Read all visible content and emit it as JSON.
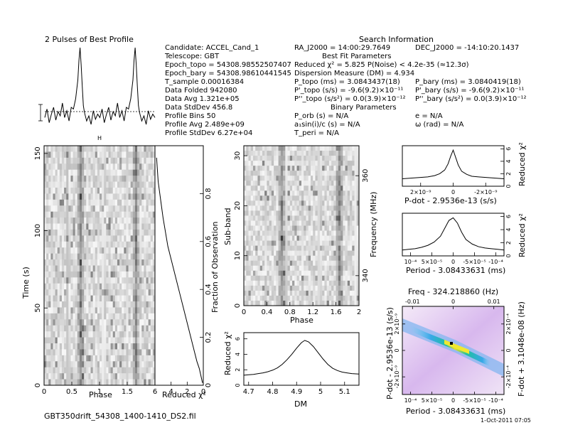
{
  "info": {
    "profile_title": "2 Pulses of Best Profile",
    "candidate": "Candidate:  ACCEL_Cand_1",
    "telescope": "Telescope:  GBT",
    "epoch_topo": "Epoch_topo = 54308.98552507407",
    "epoch_bary": "Epoch_bary = 54308.98610441545",
    "t_sample": "T_sample       0.00016384",
    "data_folded": "Data Folded      942080",
    "data_avg": "Data Avg         1.321e+05",
    "data_stddev": "Data StdDev      456.8",
    "profile_bins": "Profile Bins     50",
    "profile_avg": "Profile Avg      2.489e+09",
    "profile_stddev": "Profile StdDev   6.27e+04",
    "search_title": "Search Information",
    "ra": "RA_J2000 = 14:00:29.7649",
    "dec": "DEC_J2000 = -14:10:20.1437",
    "best_fit_title": "Best Fit Parameters",
    "reduced_chi2": "Reduced χ² = 5.825   P(Noise) < 4.2e-35   (≈12.3σ)",
    "dm": "Dispersion Measure (DM) = 4.934",
    "p_topo": "P_topo (ms) =  3.0843437(18)",
    "pdot_topo": "P'_topo (s/s) = -9.6(9.2)×10⁻¹¹",
    "pddot_topo": "P''_topo (s/s²) = 0.0(3.9)×10⁻¹²",
    "p_bary": "P_bary (ms) =  3.0840419(18)",
    "pdot_bary": "P'_bary (s/s) = -9.6(9.2)×10⁻¹¹",
    "pddot_bary": "P''_bary (s/s²) = 0.0(3.9)×10⁻¹²",
    "binary_title": "Binary Parameters",
    "p_orb": "P_orb (s) = N/A",
    "e": "e = N/A",
    "asini": "a₁sin(i)/c (s) = N/A",
    "omega": "ω (rad) = N/A",
    "t_peri": "T_peri  = N/A",
    "filename": "GBT350drift_54308_1400-1410_DS2.fil",
    "date": "1-Oct-2011 07:05"
  },
  "colors": {
    "axis": "#000000",
    "line": "#000000"
  },
  "chart_data": [
    {
      "id": "profile",
      "type": "line",
      "title": "2 Pulses of Best Profile",
      "xlabel": "",
      "ylabel": "",
      "x": [
        0.0,
        0.04,
        0.08,
        0.12,
        0.16,
        0.2,
        0.24,
        0.28,
        0.32,
        0.36,
        0.4,
        0.44,
        0.48,
        0.52,
        0.56,
        0.6,
        0.62,
        0.64,
        0.66,
        0.68,
        0.7,
        0.72,
        0.76,
        0.8,
        0.84,
        0.88,
        0.92,
        0.96,
        1.0,
        1.04,
        1.08,
        1.12,
        1.16,
        1.2,
        1.24,
        1.28,
        1.32,
        1.36,
        1.4,
        1.44,
        1.48,
        1.52,
        1.56,
        1.6,
        1.62,
        1.64,
        1.66,
        1.68,
        1.7,
        1.72,
        1.76,
        1.8,
        1.84,
        1.88,
        1.92,
        1.96,
        2.0
      ],
      "values": [
        0.18,
        0.28,
        0.12,
        0.22,
        0.3,
        0.15,
        0.25,
        0.2,
        0.35,
        0.18,
        0.26,
        0.14,
        0.3,
        0.28,
        0.4,
        0.62,
        0.85,
        1.0,
        0.8,
        0.55,
        0.32,
        0.24,
        0.14,
        0.2,
        0.1,
        0.26,
        0.16,
        0.22,
        0.18,
        0.28,
        0.12,
        0.22,
        0.3,
        0.15,
        0.25,
        0.2,
        0.35,
        0.18,
        0.26,
        0.14,
        0.3,
        0.28,
        0.4,
        0.62,
        0.85,
        1.0,
        0.8,
        0.55,
        0.32,
        0.24,
        0.14,
        0.2,
        0.1,
        0.26,
        0.16,
        0.22,
        0.18
      ]
    },
    {
      "id": "time_phase",
      "type": "heatmap",
      "xlabel": "Phase",
      "ylabel": "Time (s)",
      "xlim": [
        0,
        2
      ],
      "ylim": [
        0,
        155
      ],
      "xticks": [
        0,
        0.5,
        1,
        1.5,
        2
      ],
      "xtick_labels": [
        "0",
        "0.5",
        "1",
        "1.5",
        ""
      ],
      "yticks": [
        0,
        50,
        100,
        150
      ],
      "pulse_phases": [
        0.66,
        1.66
      ],
      "rows": 40,
      "cols": 50
    },
    {
      "id": "time_chi2",
      "type": "line",
      "xlabel": "Reduced χ²",
      "ylabel": "Fraction of Observation",
      "xlim": [
        6,
        0
      ],
      "ylim": [
        0,
        1
      ],
      "xticks": [
        6,
        4,
        2,
        0
      ],
      "yticks": [
        0,
        0.2,
        0.4,
        0.6,
        0.8
      ],
      "x": [
        5.8,
        5.7,
        5.6,
        5.4,
        5.2,
        5.0,
        4.8,
        4.6,
        4.4,
        4.1,
        3.8,
        3.5,
        3.2,
        2.9,
        2.6,
        2.3,
        2.0,
        1.7,
        1.4,
        1.1,
        0.8,
        0.5,
        0.3,
        0.1
      ],
      "y": [
        0.95,
        0.9,
        0.85,
        0.8,
        0.75,
        0.7,
        0.66,
        0.62,
        0.58,
        0.54,
        0.5,
        0.46,
        0.42,
        0.38,
        0.34,
        0.3,
        0.26,
        0.22,
        0.18,
        0.14,
        0.1,
        0.07,
        0.04,
        0.01
      ]
    },
    {
      "id": "subband_phase",
      "type": "heatmap",
      "xlabel": "Phase",
      "ylabel": "Sub-band",
      "y2label": "Frequency (MHz)",
      "xlim": [
        0,
        2
      ],
      "ylim": [
        0,
        32
      ],
      "xticks": [
        0,
        0.4,
        0.8,
        1.2,
        1.6,
        2
      ],
      "xtick_labels": [
        "0",
        "0.4",
        "0.8",
        "1.2",
        "1.6",
        "2"
      ],
      "yticks": [
        0,
        10,
        20,
        30
      ],
      "y2ticks": [
        340,
        360
      ],
      "y2lim": [
        334,
        366
      ],
      "pulse_phases": [
        0.66,
        1.66
      ],
      "rows": 32,
      "cols": 50
    },
    {
      "id": "dm_chi2",
      "type": "line",
      "xlabel": "DM",
      "ylabel": "Reduced χ²",
      "xlim": [
        4.68,
        5.16
      ],
      "ylim": [
        0,
        6.8
      ],
      "xticks": [
        4.7,
        4.8,
        4.9,
        5.0,
        5.1
      ],
      "xtick_labels": [
        "4.7",
        "4.8",
        "4.9",
        "5",
        "5.1"
      ],
      "yticks": [
        0,
        2,
        4,
        6
      ],
      "x": [
        4.68,
        4.7,
        4.72,
        4.74,
        4.76,
        4.78,
        4.8,
        4.82,
        4.84,
        4.86,
        4.88,
        4.9,
        4.92,
        4.934,
        4.95,
        4.97,
        4.99,
        5.01,
        5.03,
        5.05,
        5.07,
        5.09,
        5.11,
        5.13,
        5.16
      ],
      "y": [
        1.3,
        1.35,
        1.4,
        1.5,
        1.6,
        1.75,
        1.95,
        2.25,
        2.7,
        3.3,
        4.0,
        4.8,
        5.5,
        5.8,
        5.6,
        5.0,
        4.2,
        3.4,
        2.7,
        2.2,
        1.9,
        1.7,
        1.6,
        1.5,
        1.45
      ]
    },
    {
      "id": "pdot_chi2",
      "type": "line",
      "xlabel": "P-dot - 2.9536e-13 (s/s)",
      "ylabel": "Reduced χ²",
      "xlim": [
        3e-09,
        -3e-09
      ],
      "ylim": [
        0,
        6.5
      ],
      "xtick_labels": [
        "2×10⁻⁹",
        "0",
        "-2×10⁻⁹"
      ],
      "yticks": [
        0,
        2,
        4,
        6
      ],
      "x": [
        3e-09,
        2.5e-09,
        2e-09,
        1.5e-09,
        1.1e-09,
        8e-10,
        5e-10,
        3e-10,
        1.5e-10,
        0,
        -1.5e-10,
        -3e-10,
        -5e-10,
        -8e-10,
        -1.1e-09,
        -1.5e-09,
        -2e-09,
        -2.5e-09,
        -3e-09
      ],
      "y": [
        1.2,
        1.3,
        1.4,
        1.5,
        1.7,
        2.0,
        2.6,
        3.6,
        4.8,
        5.8,
        4.6,
        3.4,
        2.4,
        1.9,
        1.6,
        1.5,
        1.4,
        1.3,
        1.2
      ]
    },
    {
      "id": "period_chi2",
      "type": "line",
      "xlabel": "Period - 3.08433631 (ms)",
      "ylabel": "Reduced χ²",
      "xlim": [
        0.00012,
        -0.00012
      ],
      "ylim": [
        0,
        6.5
      ],
      "xtick_labels": [
        "10⁻⁴",
        "5×10⁻⁵",
        "0",
        "-5×10⁻⁵",
        "-10⁻⁴"
      ],
      "yticks": [
        0,
        2,
        4,
        6
      ],
      "x": [
        0.00012,
        0.000105,
        9e-05,
        7.5e-05,
        6e-05,
        4.5e-05,
        3e-05,
        2e-05,
        1e-05,
        0,
        -1e-05,
        -2e-05,
        -3e-05,
        -4.5e-05,
        -6e-05,
        -7.5e-05,
        -9e-05,
        -0.000105,
        -0.00012
      ],
      "y": [
        0.9,
        1.0,
        1.1,
        1.3,
        1.6,
        2.1,
        3.0,
        4.2,
        5.4,
        5.8,
        5.0,
        3.6,
        2.5,
        1.8,
        1.4,
        1.2,
        1.1,
        1.0,
        0.9
      ]
    },
    {
      "id": "p_pdot_map",
      "type": "heatmap",
      "title": "Freq - 324.218860 (Hz)",
      "xlabel": "Period - 3.08433631 (ms)",
      "ylabel": "P-dot - 2.9536e-13 (s/s)",
      "y2label": "F-dot + 3.1048e-08 (Hz)",
      "top_tick_labels": [
        "-0.01",
        "0",
        "0.01"
      ],
      "xtick_labels": [
        "10⁻⁴",
        "5×10⁻⁵",
        "0",
        "-5×10⁻⁵",
        "-10⁻⁴"
      ],
      "ytick_labels": [
        "2×10⁻⁹",
        "0",
        "-2×10⁻⁹"
      ],
      "y2tick_labels": [
        "2×10⁻⁴",
        "0",
        "-2×10⁻⁴"
      ]
    }
  ]
}
